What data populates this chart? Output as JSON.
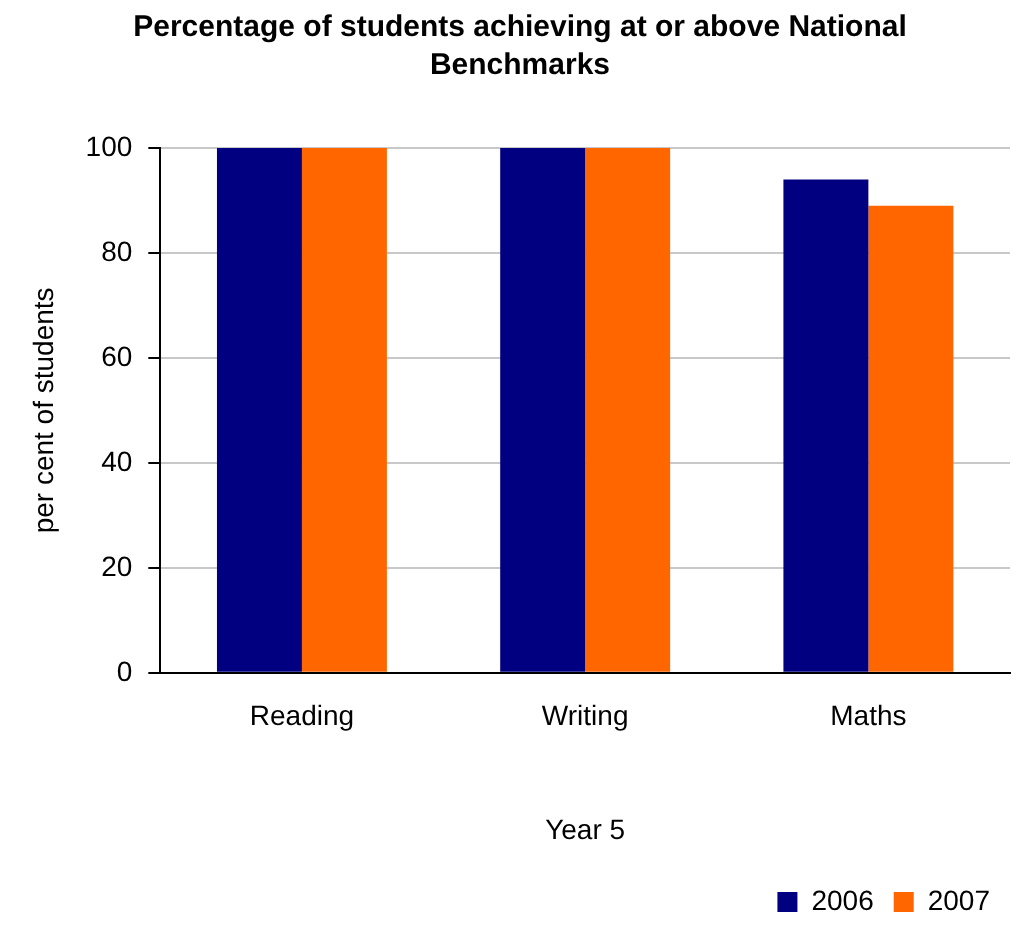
{
  "chart_data": {
    "type": "bar",
    "title": "Percentage of students achieving at or above National Benchmarks",
    "ylabel": "per cent of students",
    "xlabel": "Year 5",
    "categories": [
      "Reading",
      "Writing",
      "Maths"
    ],
    "series": [
      {
        "name": "2006",
        "color": "#000080",
        "values": [
          100,
          100,
          94
        ]
      },
      {
        "name": "2007",
        "color": "#ff6600",
        "values": [
          100,
          100,
          89
        ]
      }
    ],
    "ylim": [
      0,
      100
    ],
    "yticks": [
      0,
      20,
      40,
      60,
      80,
      100
    ],
    "grid": "y",
    "legend": "bottom right"
  }
}
